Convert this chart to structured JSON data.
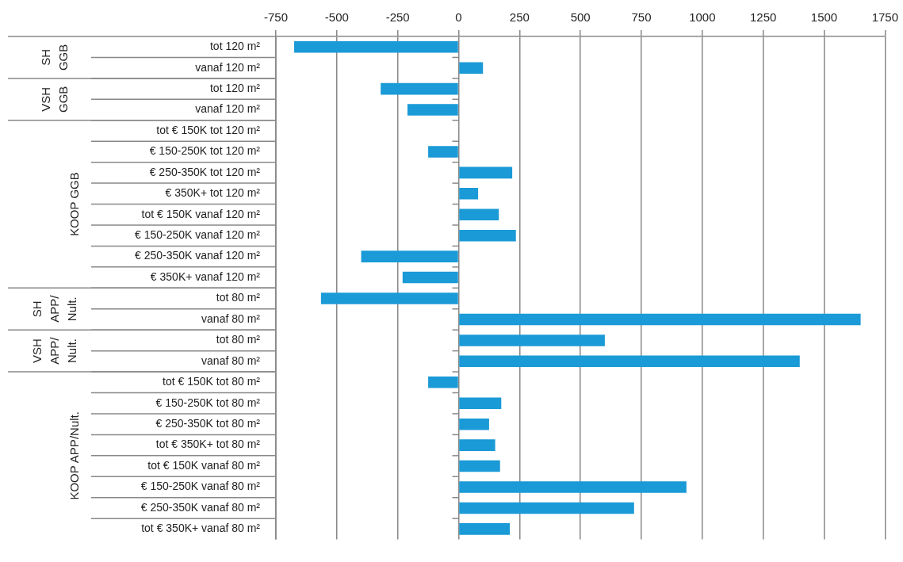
{
  "chart_data": {
    "type": "bar",
    "orientation": "horizontal",
    "categories": [
      "tot 120 m²",
      "vanaf 120 m²",
      "tot 120 m²",
      "vanaf 120 m²",
      "tot € 150K tot 120 m²",
      "€ 150-250K tot 120 m²",
      "€ 250-350K tot 120 m²",
      "€ 350K+ tot 120 m²",
      "tot € 150K vanaf 120 m²",
      "€ 150-250K vanaf 120 m²",
      "€ 250-350K vanaf 120 m²",
      "€ 350K+ vanaf 120 m²",
      "tot 80 m²",
      "vanaf 80 m²",
      "tot 80 m²",
      "vanaf 80 m²",
      "tot € 150K tot 80 m²",
      "€ 150-250K tot 80 m²",
      "€ 250-350K tot 80 m²",
      "tot € 350K+ tot 80 m²",
      "tot € 150K vanaf 80 m²",
      "€ 150-250K vanaf 80 m²",
      "€ 250-350K vanaf 80 m²",
      "tot € 350K+ vanaf 80 m²"
    ],
    "values": [
      -675,
      100,
      -320,
      -210,
      0,
      -125,
      220,
      80,
      165,
      235,
      -400,
      -230,
      -565,
      1650,
      600,
      1400,
      -125,
      175,
      125,
      150,
      170,
      935,
      720,
      210
    ],
    "color": "#1a9ad6",
    "xlim": [
      -750,
      1750
    ],
    "xticks": [
      -750,
      -500,
      -250,
      0,
      250,
      500,
      750,
      1000,
      1250,
      1500,
      1750
    ],
    "grid": "x",
    "legend": false,
    "annotations": [
      "SH\nGGB",
      "VSH\nGGB",
      "KOOP GGB",
      "SH\nAPP/\nNult.",
      "VSH\nAPP/\nNult.",
      "KOOP APP/Nult."
    ]
  }
}
